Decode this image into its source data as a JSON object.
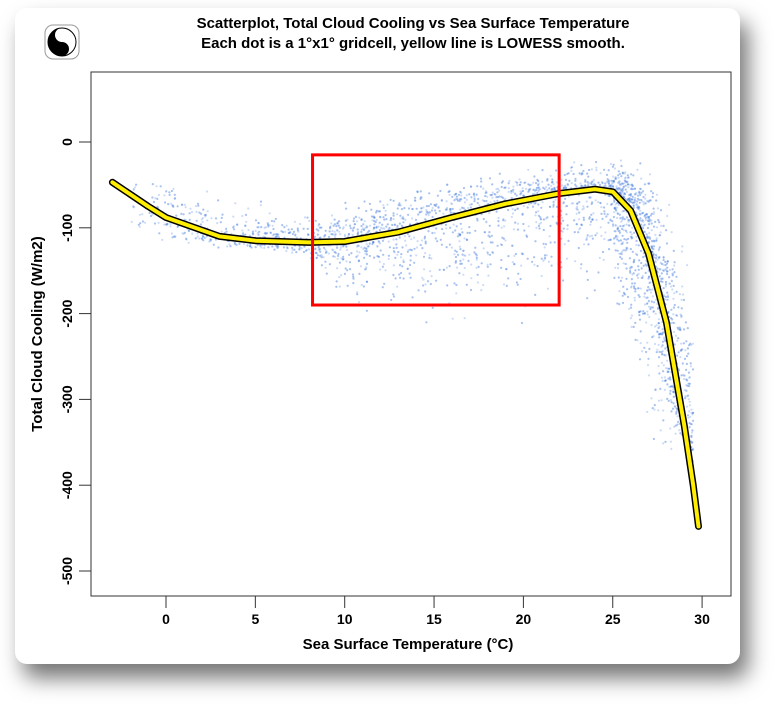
{
  "chart_data": {
    "type": "scatter",
    "title": "Scatterplot, Total Cloud Cooling vs Sea Surface Temperature",
    "subtitle": "Each dot is a 1°x1° gridcell, yellow line is LOWESS smooth.",
    "xlabel": "Sea Surface Temperature (°C)",
    "ylabel": "Total Cloud Cooling (W/m2)",
    "xlim": [
      -4.2,
      31.5
    ],
    "ylim": [
      -530,
      82
    ],
    "xticks": [
      "0",
      "5",
      "10",
      "15",
      "20",
      "25",
      "30"
    ],
    "xtick_values": [
      0,
      5,
      10,
      15,
      20,
      25,
      30
    ],
    "yticks": [
      "0",
      "-100",
      "-200",
      "-300",
      "-400",
      "-500"
    ],
    "ytick_values": [
      0,
      -100,
      -200,
      -300,
      -400,
      -500
    ],
    "grid": false,
    "scatter_color": "#4a80e0",
    "scatter_envelope": {
      "x": [
        -2,
        0,
        5,
        8,
        10,
        15,
        20,
        22,
        25,
        27,
        28,
        29,
        29.5
      ],
      "upper": [
        -20,
        -40,
        -60,
        -75,
        -60,
        -40,
        -25,
        -20,
        -15,
        -20,
        -40,
        -80,
        -150
      ],
      "lower": [
        -130,
        -125,
        -130,
        -140,
        -200,
        -230,
        -220,
        -200,
        -180,
        -350,
        -400,
        -360,
        -300
      ]
    },
    "lowess": {
      "color": "#ffee00",
      "x": [
        -3,
        -1,
        0,
        3,
        5,
        8,
        10,
        13,
        16,
        19,
        22,
        24,
        25,
        26,
        27,
        28,
        29,
        29.5,
        29.8
      ],
      "y": [
        -47,
        -75,
        -88,
        -110,
        -115,
        -117,
        -116,
        -105,
        -88,
        -72,
        -60,
        -55,
        -58,
        -80,
        -130,
        -210,
        -330,
        -400,
        -448
      ]
    },
    "highlight_box": {
      "color": "#ff0000",
      "x": [
        8.2,
        22.0
      ],
      "y": [
        -15,
        -190
      ]
    }
  }
}
